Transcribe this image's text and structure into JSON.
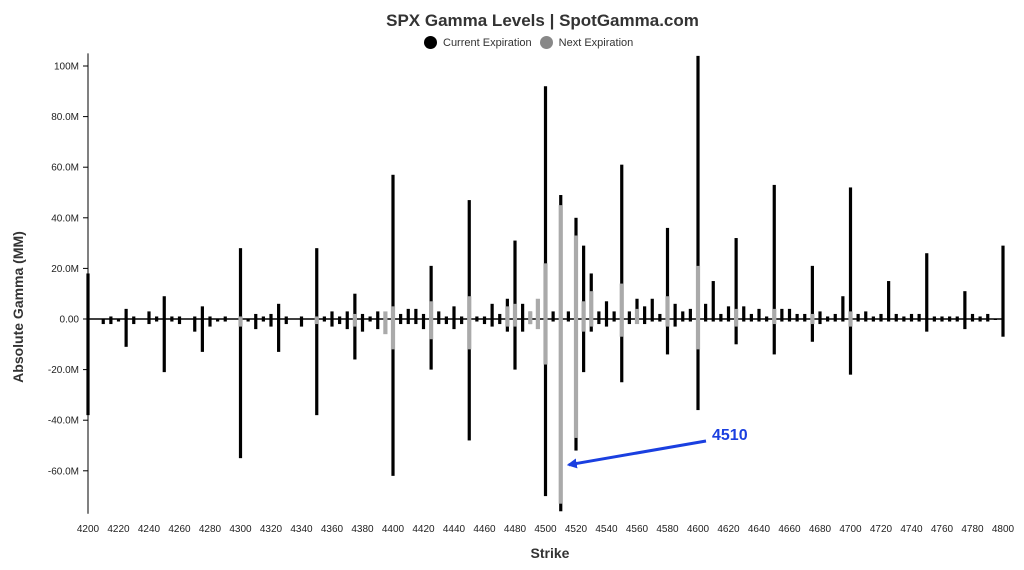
{
  "chart_data": {
    "type": "bar",
    "title": "SPX Gamma Levels | SpotGamma.com",
    "xlabel": "Strike",
    "ylabel": "Absolute Gamma (MM)",
    "ylim": [
      -77,
      105
    ],
    "xlim": [
      4200,
      4800
    ],
    "legend_placement": "top-center",
    "colors": {
      "current": "#000000",
      "next": "#aaaaaa",
      "annotation": "#1a3fe0"
    },
    "yticks": [
      {
        "value": 100,
        "label": "100M"
      },
      {
        "value": 80,
        "label": "80.0M"
      },
      {
        "value": 60,
        "label": "60.0M"
      },
      {
        "value": 40,
        "label": "40.0M"
      },
      {
        "value": 20,
        "label": "20.0M"
      },
      {
        "value": 0,
        "label": "0.00"
      },
      {
        "value": -20,
        "label": "-20.0M"
      },
      {
        "value": -40,
        "label": "-40.0M"
      },
      {
        "value": -60,
        "label": "-60.0M"
      }
    ],
    "xticks": [
      4200,
      4220,
      4240,
      4260,
      4280,
      4300,
      4320,
      4340,
      4360,
      4380,
      4400,
      4420,
      4440,
      4460,
      4480,
      4500,
      4520,
      4540,
      4560,
      4580,
      4600,
      4620,
      4640,
      4660,
      4680,
      4700,
      4720,
      4740,
      4760,
      4780,
      4800
    ],
    "series": [
      {
        "name": "Current Expiration",
        "color": "#000000",
        "points": [
          [
            4200,
            18,
            -38
          ],
          [
            4210,
            0,
            -2
          ],
          [
            4215,
            1,
            -2
          ],
          [
            4220,
            0,
            -1
          ],
          [
            4225,
            4,
            -11
          ],
          [
            4230,
            1,
            -2
          ],
          [
            4240,
            3,
            -2
          ],
          [
            4245,
            1,
            -1
          ],
          [
            4250,
            9,
            -21
          ],
          [
            4255,
            1,
            -1
          ],
          [
            4260,
            1,
            -2
          ],
          [
            4270,
            1,
            -5
          ],
          [
            4275,
            5,
            -13
          ],
          [
            4280,
            1,
            -3
          ],
          [
            4285,
            0,
            -1
          ],
          [
            4290,
            1,
            -1
          ],
          [
            4300,
            28,
            -55
          ],
          [
            4305,
            0,
            -1
          ],
          [
            4310,
            2,
            -4
          ],
          [
            4315,
            1,
            -1
          ],
          [
            4320,
            2,
            -3
          ],
          [
            4325,
            6,
            -13
          ],
          [
            4330,
            1,
            -2
          ],
          [
            4340,
            1,
            -3
          ],
          [
            4350,
            28,
            -38
          ],
          [
            4355,
            1,
            -1
          ],
          [
            4360,
            3,
            -3
          ],
          [
            4365,
            1,
            -2
          ],
          [
            4370,
            3,
            -4
          ],
          [
            4375,
            10,
            -16
          ],
          [
            4380,
            2,
            -5
          ],
          [
            4385,
            1,
            -1
          ],
          [
            4390,
            3,
            -4
          ],
          [
            4395,
            1,
            -3
          ],
          [
            4400,
            57,
            -62
          ],
          [
            4405,
            2,
            -2
          ],
          [
            4410,
            4,
            -2
          ],
          [
            4415,
            4,
            -2
          ],
          [
            4420,
            2,
            -4
          ],
          [
            4425,
            21,
            -20
          ],
          [
            4430,
            3,
            -2
          ],
          [
            4435,
            1,
            -2
          ],
          [
            4440,
            5,
            -4
          ],
          [
            4445,
            1,
            -2
          ],
          [
            4450,
            47,
            -48
          ],
          [
            4455,
            1,
            -1
          ],
          [
            4460,
            1,
            -2
          ],
          [
            4465,
            6,
            -3
          ],
          [
            4470,
            2,
            -2
          ],
          [
            4475,
            8,
            -5
          ],
          [
            4480,
            31,
            -20
          ],
          [
            4485,
            6,
            -5
          ],
          [
            4490,
            3,
            -2
          ],
          [
            4495,
            5,
            -3
          ],
          [
            4500,
            92,
            -70
          ],
          [
            4505,
            3,
            -1
          ],
          [
            4510,
            49,
            -76
          ],
          [
            4515,
            3,
            -1
          ],
          [
            4520,
            40,
            -52
          ],
          [
            4525,
            29,
            -21
          ],
          [
            4530,
            18,
            -5
          ],
          [
            4535,
            3,
            -2
          ],
          [
            4540,
            7,
            -3
          ],
          [
            4545,
            3,
            -1
          ],
          [
            4550,
            61,
            -25
          ],
          [
            4555,
            3,
            -2
          ],
          [
            4560,
            8,
            -1
          ],
          [
            4565,
            5,
            -2
          ],
          [
            4570,
            8,
            -1
          ],
          [
            4575,
            2,
            -1
          ],
          [
            4580,
            36,
            -14
          ],
          [
            4585,
            6,
            -3
          ],
          [
            4590,
            3,
            -1
          ],
          [
            4595,
            4,
            -1
          ],
          [
            4600,
            104,
            -36
          ],
          [
            4605,
            6,
            -1
          ],
          [
            4610,
            15,
            -1
          ],
          [
            4615,
            2,
            -1
          ],
          [
            4620,
            5,
            -1
          ],
          [
            4625,
            32,
            -10
          ],
          [
            4630,
            5,
            -1
          ],
          [
            4635,
            2,
            -1
          ],
          [
            4640,
            4,
            -1
          ],
          [
            4645,
            1,
            -1
          ],
          [
            4650,
            53,
            -14
          ],
          [
            4655,
            4,
            -1
          ],
          [
            4660,
            4,
            -1
          ],
          [
            4665,
            2,
            -1
          ],
          [
            4670,
            2,
            -1
          ],
          [
            4675,
            21,
            -9
          ],
          [
            4680,
            3,
            -2
          ],
          [
            4685,
            1,
            -1
          ],
          [
            4690,
            2,
            -1
          ],
          [
            4695,
            9,
            -1
          ],
          [
            4700,
            52,
            -22
          ],
          [
            4705,
            2,
            -1
          ],
          [
            4710,
            3,
            -1
          ],
          [
            4715,
            1,
            -1
          ],
          [
            4720,
            2,
            -1
          ],
          [
            4725,
            15,
            -1
          ],
          [
            4730,
            2,
            -1
          ],
          [
            4735,
            1,
            -1
          ],
          [
            4740,
            2,
            -1
          ],
          [
            4745,
            2,
            -1
          ],
          [
            4750,
            26,
            -5
          ],
          [
            4755,
            1,
            -1
          ],
          [
            4760,
            1,
            -1
          ],
          [
            4765,
            1,
            -1
          ],
          [
            4770,
            1,
            -1
          ],
          [
            4775,
            11,
            -4
          ],
          [
            4780,
            2,
            -1
          ],
          [
            4785,
            1,
            -1
          ],
          [
            4790,
            2,
            -1
          ],
          [
            4795,
            0,
            0
          ],
          [
            4800,
            29,
            -7
          ]
        ]
      },
      {
        "name": "Next Expiration",
        "color": "#aaaaaa",
        "points": [
          [
            4300,
            1,
            -3
          ],
          [
            4350,
            1,
            -2
          ],
          [
            4375,
            2,
            -3
          ],
          [
            4395,
            3,
            -6
          ],
          [
            4400,
            5,
            -12
          ],
          [
            4425,
            7,
            -8
          ],
          [
            4450,
            9,
            -12
          ],
          [
            4475,
            5,
            -3
          ],
          [
            4480,
            6,
            -3
          ],
          [
            4490,
            3,
            -2
          ],
          [
            4495,
            8,
            -4
          ],
          [
            4500,
            22,
            -18
          ],
          [
            4510,
            45,
            -73
          ],
          [
            4520,
            33,
            -47
          ],
          [
            4525,
            7,
            -5
          ],
          [
            4530,
            11,
            -3
          ],
          [
            4550,
            14,
            -7
          ],
          [
            4560,
            4,
            -2
          ],
          [
            4580,
            9,
            -3
          ],
          [
            4600,
            21,
            -12
          ],
          [
            4625,
            4,
            -3
          ],
          [
            4650,
            4,
            -2
          ],
          [
            4675,
            2,
            -2
          ],
          [
            4700,
            3,
            -3
          ]
        ]
      }
    ],
    "annotation": {
      "text": "4510",
      "target_x": 4510,
      "target_y": -60
    }
  }
}
